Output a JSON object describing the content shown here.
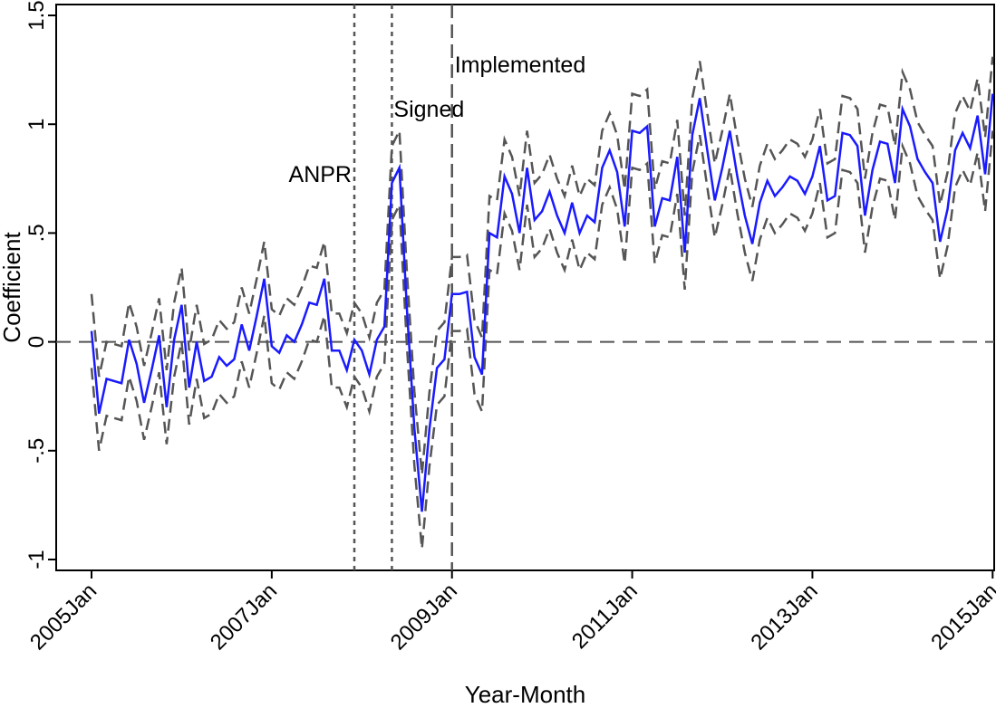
{
  "chart_data": {
    "type": "line",
    "title": "",
    "xlabel": "Year-Month",
    "ylabel": "Coefficient",
    "x_ticks": [
      "2005Jan",
      "2007Jan",
      "2009Jan",
      "2011Jan",
      "2013Jan",
      "2015Jan"
    ],
    "y_ticks": [
      {
        "value": -1,
        "label": "-1"
      },
      {
        "value": -0.5,
        "label": "-.5"
      },
      {
        "value": 0,
        "label": "0"
      },
      {
        "value": 0.5,
        "label": ".5"
      },
      {
        "value": 1,
        "label": "1"
      },
      {
        "value": 1.5,
        "label": "1.5"
      }
    ],
    "xlim": [
      "2005-01",
      "2014-12"
    ],
    "ylim": [
      -1.05,
      1.55
    ],
    "grid": false,
    "reference_line": 0,
    "events": [
      {
        "label": "ANPR",
        "date": "2007-12",
        "style": "dotted"
      },
      {
        "label": "Signed",
        "date": "2008-05",
        "style": "dotted"
      },
      {
        "label": "Implemented",
        "date": "2009-01",
        "style": "dashed"
      }
    ],
    "band_halfwidth": 0.17,
    "colors": {
      "coefficient": "#1a1aff",
      "ci": "#555555",
      "axis": "#000000"
    },
    "series": [
      {
        "role": "coefficient",
        "start": "2005-01",
        "values": [
          0.05,
          -0.33,
          -0.17,
          -0.18,
          -0.19,
          0.01,
          -0.1,
          -0.28,
          -0.13,
          0.03,
          -0.3,
          0.01,
          0.17,
          -0.21,
          0.0,
          -0.18,
          -0.16,
          -0.07,
          -0.11,
          -0.08,
          0.08,
          -0.04,
          0.12,
          0.29,
          -0.02,
          -0.05,
          0.03,
          0.0,
          0.08,
          0.18,
          0.17,
          0.29,
          -0.04,
          -0.04,
          -0.13,
          0.01,
          -0.04,
          -0.15,
          0.01,
          0.07,
          0.73,
          0.8,
          0.15,
          -0.4,
          -0.78,
          -0.4,
          -0.12,
          -0.08,
          0.22,
          0.22,
          0.23,
          -0.07,
          -0.15,
          0.5,
          0.48,
          0.76,
          0.68,
          0.5,
          0.8,
          0.56,
          0.6,
          0.69,
          0.58,
          0.5,
          0.64,
          0.5,
          0.58,
          0.55,
          0.8,
          0.88,
          0.78,
          0.53,
          0.97,
          0.96,
          0.99,
          0.53,
          0.66,
          0.65,
          0.85,
          0.41,
          0.95,
          1.12,
          0.88,
          0.65,
          0.8,
          0.97,
          0.76,
          0.58,
          0.45,
          0.64,
          0.74,
          0.67,
          0.71,
          0.76,
          0.74,
          0.68,
          0.76,
          0.9,
          0.65,
          0.67,
          0.96,
          0.95,
          0.9,
          0.58,
          0.79,
          0.92,
          0.91,
          0.73,
          1.07,
          0.99,
          0.84,
          0.78,
          0.73,
          0.46,
          0.61,
          0.88,
          0.96,
          0.89,
          1.04,
          0.77,
          1.14
        ]
      }
    ]
  }
}
